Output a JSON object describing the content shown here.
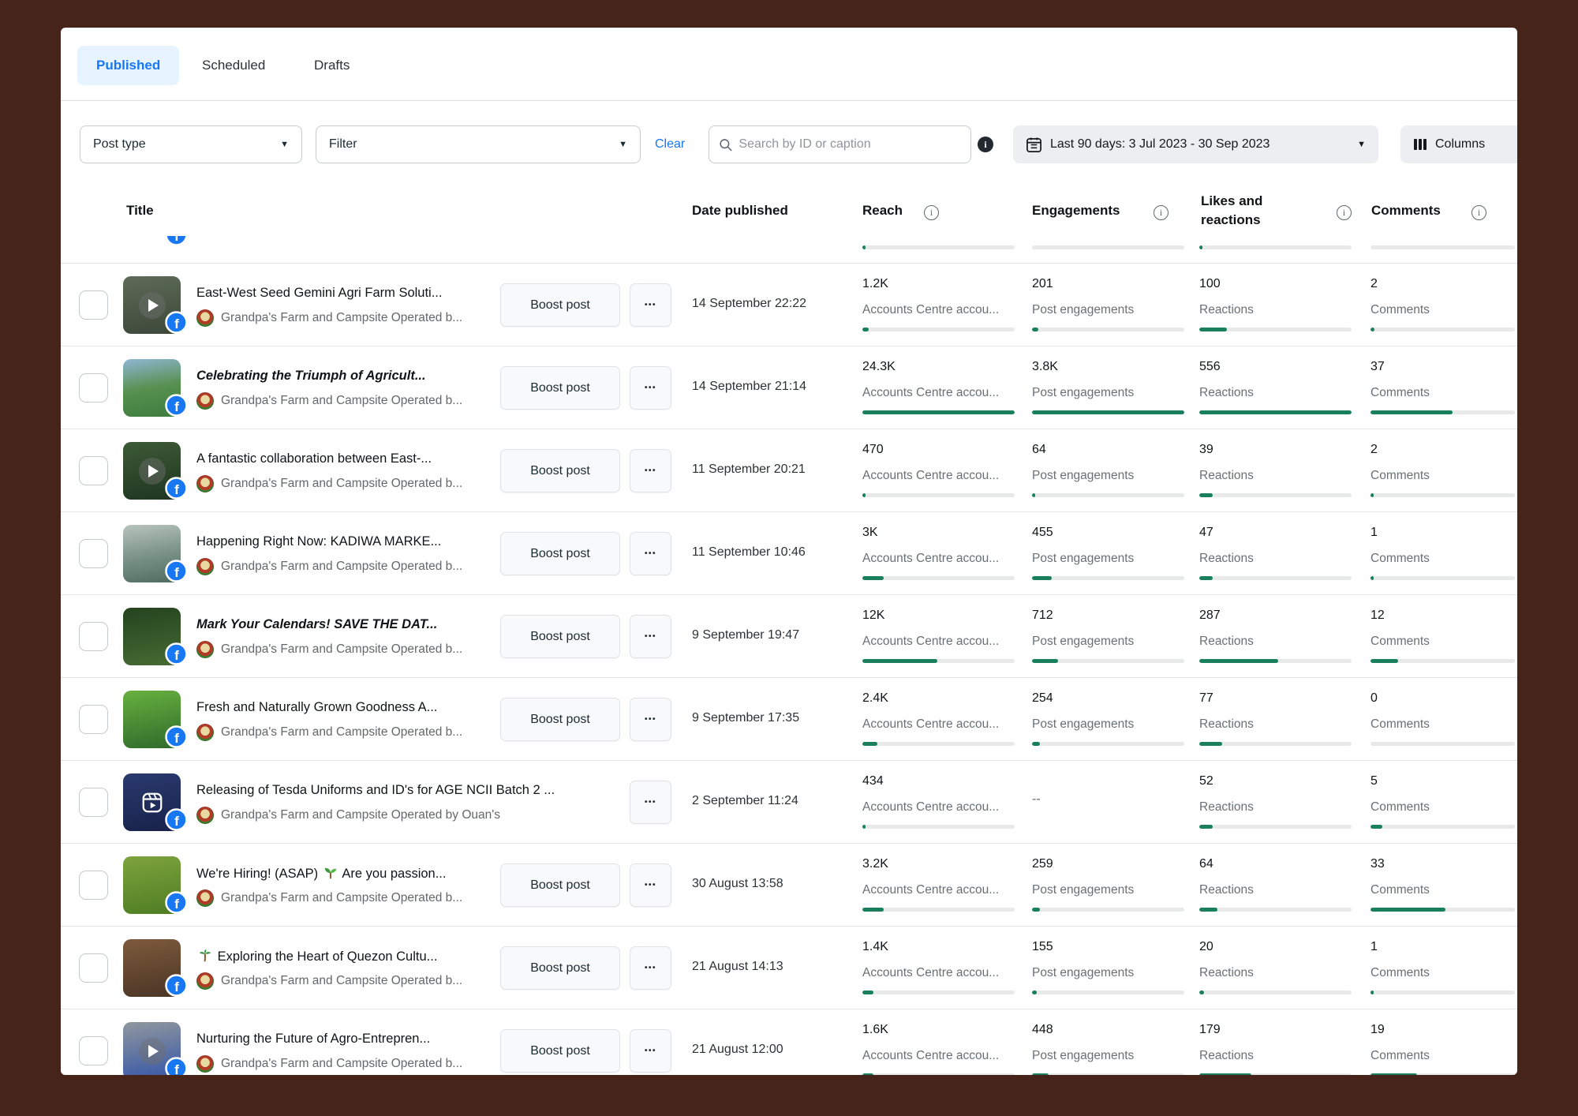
{
  "colors": {
    "accent_blue": "#1877F2",
    "bar_green": "#1A7F5C",
    "bar_track": "#E7EAE9",
    "page_background": "#462419"
  },
  "tabs": [
    {
      "label": "Published",
      "active": true
    },
    {
      "label": "Scheduled",
      "active": false
    },
    {
      "label": "Drafts",
      "active": false
    }
  ],
  "filters": {
    "post_type_label": "Post type",
    "filter_label": "Filter",
    "clear_label": "Clear",
    "search_placeholder": "Search by ID or caption",
    "date_range_label": "Last 90 days: 3 Jul 2023 - 30 Sep 2023",
    "columns_label": "Columns"
  },
  "table": {
    "headers": {
      "title": "Title",
      "date": "Date published",
      "reach": "Reach",
      "engagements": "Engagements",
      "likes": "Likes and reactions",
      "comments": "Comments"
    },
    "boost_label": "Boost post",
    "more_label": "•••",
    "reach_sublabel": "Accounts Centre accou...",
    "engagement_sublabel": "Post engagements",
    "likes_sublabel": "Reactions",
    "comments_sublabel": "Comments",
    "partial_row": {
      "bars": [
        2,
        0,
        2,
        0
      ]
    },
    "rows": [
      {
        "title_parts": [
          {
            "text": "East-West Seed Gemini Agri Farm Soluti..."
          }
        ],
        "emphasized": false,
        "media": "video",
        "has_boost": true,
        "page_name": "Grandpa's Farm and Campsite Operated b...",
        "thumb_colors": [
          "#5d6b58",
          "#3c4838"
        ],
        "date": "14 September 22:22",
        "reach": {
          "value": "1.2K",
          "pct": 4
        },
        "engagements": {
          "value": "201",
          "pct": 4
        },
        "likes": {
          "value": "100",
          "pct": 18
        },
        "comments": {
          "value": "2",
          "pct": 3
        }
      },
      {
        "title_parts": [
          {
            "text": "Celebrating the Triumph of Agricult..."
          }
        ],
        "emphasized": true,
        "media": "photo",
        "has_boost": true,
        "page_name": "Grandpa's Farm and Campsite Operated b...",
        "thumb_colors": [
          "#8fb6d4",
          "#57904f",
          "#3c7d3f"
        ],
        "date": "14 September 21:14",
        "reach": {
          "value": "24.3K",
          "pct": 100
        },
        "engagements": {
          "value": "3.8K",
          "pct": 100
        },
        "likes": {
          "value": "556",
          "pct": 100
        },
        "comments": {
          "value": "37",
          "pct": 57
        }
      },
      {
        "title_parts": [
          {
            "text": "A fantastic collaboration between East-..."
          }
        ],
        "emphasized": false,
        "media": "video",
        "has_boost": true,
        "page_name": "Grandpa's Farm and Campsite Operated b...",
        "thumb_colors": [
          "#3c5a36",
          "#1f3520"
        ],
        "date": "11 September 20:21",
        "reach": {
          "value": "470",
          "pct": 2
        },
        "engagements": {
          "value": "64",
          "pct": 2
        },
        "likes": {
          "value": "39",
          "pct": 9
        },
        "comments": {
          "value": "2",
          "pct": 2
        }
      },
      {
        "title_parts": [
          {
            "text": "Happening Right Now: KADIWA MARKE..."
          }
        ],
        "emphasized": false,
        "media": "photo",
        "has_boost": true,
        "page_name": "Grandpa's Farm and Campsite Operated b...",
        "thumb_colors": [
          "#b9c4bd",
          "#7c948a",
          "#4e6b5d"
        ],
        "date": "11 September 10:46",
        "reach": {
          "value": "3K",
          "pct": 14
        },
        "engagements": {
          "value": "455",
          "pct": 13
        },
        "likes": {
          "value": "47",
          "pct": 9
        },
        "comments": {
          "value": "1",
          "pct": 2
        }
      },
      {
        "title_parts": [
          {
            "text": "Mark Your Calendars! SAVE THE DAT..."
          }
        ],
        "emphasized": true,
        "media": "photo",
        "has_boost": true,
        "page_name": "Grandpa's Farm and Campsite Operated b...",
        "thumb_colors": [
          "#24431f",
          "#476b33"
        ],
        "date": "9 September 19:47",
        "reach": {
          "value": "12K",
          "pct": 49
        },
        "engagements": {
          "value": "712",
          "pct": 17
        },
        "likes": {
          "value": "287",
          "pct": 52
        },
        "comments": {
          "value": "12",
          "pct": 19
        }
      },
      {
        "title_parts": [
          {
            "text": "Fresh and Naturally Grown Goodness A..."
          }
        ],
        "emphasized": false,
        "media": "photo",
        "has_boost": true,
        "page_name": "Grandpa's Farm and Campsite Operated b...",
        "thumb_colors": [
          "#67b03e",
          "#2f6b2c"
        ],
        "date": "9 September 17:35",
        "reach": {
          "value": "2.4K",
          "pct": 10
        },
        "engagements": {
          "value": "254",
          "pct": 5
        },
        "likes": {
          "value": "77",
          "pct": 15
        },
        "comments": {
          "value": "0",
          "pct": 0
        }
      },
      {
        "title_parts": [
          {
            "text": "Releasing of Tesda Uniforms and ID's for AGE NCII Batch 2 ..."
          }
        ],
        "emphasized": false,
        "media": "reel",
        "has_boost": false,
        "page_name": "Grandpa's Farm and Campsite Operated by Ouan's",
        "thumb_colors": [
          "#2a3a6e",
          "#18224a"
        ],
        "date": "2 September 11:24",
        "reach": {
          "value": "434",
          "pct": 2
        },
        "engagements": {
          "value": "--",
          "pct": null
        },
        "likes": {
          "value": "52",
          "pct": 9
        },
        "comments": {
          "value": "5",
          "pct": 8
        }
      },
      {
        "title_parts": [
          {
            "text": "We're Hiring! (ASAP) "
          },
          {
            "icon": "seedling-icon"
          },
          {
            "text": " Are you passion..."
          }
        ],
        "emphasized": false,
        "media": "photo",
        "has_boost": true,
        "page_name": "Grandpa's Farm and Campsite Operated b...",
        "thumb_colors": [
          "#7da33c",
          "#4f7d24"
        ],
        "date": "30 August 13:58",
        "reach": {
          "value": "3.2K",
          "pct": 14
        },
        "engagements": {
          "value": "259",
          "pct": 5
        },
        "likes": {
          "value": "64",
          "pct": 12
        },
        "comments": {
          "value": "33",
          "pct": 52
        }
      },
      {
        "title_parts": [
          {
            "icon": "palm-tree-icon"
          },
          {
            "text": " Exploring the Heart of Quezon Cultu..."
          }
        ],
        "emphasized": false,
        "media": "photo",
        "has_boost": true,
        "page_name": "Grandpa's Farm and Campsite Operated b...",
        "thumb_colors": [
          "#7d5a3c",
          "#4a3524"
        ],
        "date": "21 August 14:13",
        "reach": {
          "value": "1.4K",
          "pct": 7
        },
        "engagements": {
          "value": "155",
          "pct": 3
        },
        "likes": {
          "value": "20",
          "pct": 3
        },
        "comments": {
          "value": "1",
          "pct": 2
        }
      },
      {
        "title_parts": [
          {
            "text": "Nurturing the Future of Agro-Entrepren..."
          }
        ],
        "emphasized": false,
        "media": "video",
        "has_boost": true,
        "page_name": "Grandpa's Farm and Campsite Operated b...",
        "thumb_colors": [
          "#8f979e",
          "#3555a8"
        ],
        "date": "21 August 12:00",
        "reach": {
          "value": "1.6K",
          "pct": 7
        },
        "engagements": {
          "value": "448",
          "pct": 11
        },
        "likes": {
          "value": "179",
          "pct": 34
        },
        "comments": {
          "value": "19",
          "pct": 32
        }
      }
    ]
  }
}
